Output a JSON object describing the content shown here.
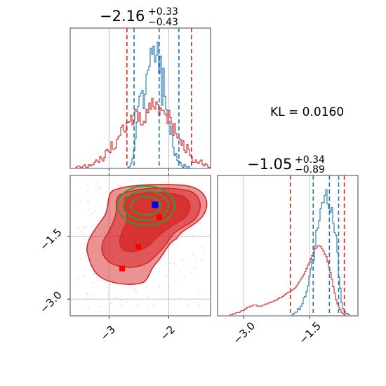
{
  "chart_data": [
    {
      "type": "histogram",
      "panel": "top-left",
      "parameter_index": 0,
      "title": {
        "median": "−2.16",
        "plus": "+0.33",
        "minus": "−0.43"
      },
      "xlim": [
        -3.65,
        -1.3
      ],
      "dashed_lines": {
        "blue": [
          -2.58,
          -2.16,
          -1.83
        ],
        "red": [
          -2.7,
          -1.62
        ]
      },
      "series": [
        {
          "color": "#1f77b4",
          "center": -2.16,
          "sigma": 0.2,
          "weight": 0.25,
          "counts": [
            0,
            0,
            0,
            0,
            0,
            0,
            0,
            0,
            0,
            0,
            0,
            0,
            0,
            0,
            0,
            0,
            0,
            0,
            0,
            0,
            0,
            0,
            0,
            0,
            0,
            0,
            0,
            0,
            0,
            0,
            0,
            0,
            0,
            0,
            0,
            0,
            0,
            0,
            0,
            0,
            0,
            1,
            2,
            5,
            10,
            18,
            30,
            46,
            62,
            72,
            75,
            78,
            60,
            74,
            94,
            98,
            102,
            120,
            114,
            122,
            106,
            113,
            126,
            95,
            112,
            63,
            100,
            72,
            59,
            54,
            47,
            34,
            42,
            21,
            13,
            15,
            8,
            7,
            6,
            3,
            1,
            4,
            2,
            0,
            2,
            0,
            0,
            0,
            0,
            0,
            0,
            0,
            0,
            0,
            0,
            0,
            0,
            0,
            0,
            0
          ]
        },
        {
          "color": "#d62728",
          "center": -2.16,
          "sigma": 0.28,
          "weight": 0.75,
          "counts": [
            0,
            0,
            0,
            0,
            1,
            2,
            2,
            1,
            1,
            2,
            3,
            1,
            1,
            3,
            2,
            3,
            3,
            5,
            7,
            6,
            5,
            10,
            8,
            6,
            9,
            15,
            16,
            14,
            13,
            22,
            16,
            16,
            17,
            24,
            26,
            27,
            34,
            36,
            31,
            30,
            38,
            38,
            39,
            44,
            36,
            40,
            49,
            47,
            39,
            46,
            36,
            36,
            39,
            38,
            49,
            46,
            54,
            49,
            58,
            51,
            49,
            55,
            53,
            44,
            50,
            48,
            48,
            45,
            44,
            37,
            48,
            42,
            37,
            27,
            37,
            29,
            25,
            25,
            24,
            19,
            23,
            15,
            13,
            20,
            16,
            11,
            10,
            5,
            5,
            7,
            5,
            4,
            6,
            7,
            3,
            2,
            4,
            3,
            1,
            1
          ]
        }
      ]
    },
    {
      "type": "histogram",
      "panel": "bottom-right",
      "parameter_index": 1,
      "title": {
        "median": "−1.05",
        "plus": "+0.34",
        "minus": "−0.89"
      },
      "xlim": [
        -3.6,
        -0.4
      ],
      "xticks": [
        -3.0,
        -1.5
      ],
      "xtick_labels": [
        "−3.0",
        "−1.5"
      ],
      "dashed_lines": {
        "blue": [
          -1.42,
          -1.05,
          -0.84
        ],
        "red": [
          -1.94,
          -0.71
        ]
      },
      "series": [
        {
          "color": "#1f77b4",
          "center": -1.05,
          "sigma": 0.2,
          "weight": 0.25,
          "counts": [
            0,
            0,
            0,
            0,
            0,
            0,
            0,
            0,
            0,
            0,
            0,
            0,
            0,
            0,
            0,
            0,
            0,
            0,
            0,
            0,
            0,
            0,
            0,
            0,
            0,
            0,
            0,
            0,
            0,
            0,
            0,
            0,
            0,
            0,
            0,
            0,
            0,
            0,
            0,
            0,
            0,
            0,
            0,
            0,
            0,
            0,
            0,
            0,
            0,
            0,
            0,
            0,
            0,
            1,
            2,
            3,
            3,
            6,
            5,
            8,
            10,
            15,
            16,
            20,
            25,
            33,
            39,
            47,
            46,
            58,
            71,
            73,
            79,
            89,
            94,
            94,
            100,
            105,
            93,
            89,
            86,
            90,
            77,
            69,
            67,
            53,
            32,
            23,
            11,
            6,
            4,
            2,
            2,
            1,
            0,
            0,
            0,
            0,
            0,
            0
          ]
        },
        {
          "color": "#d62728",
          "center": -1.05,
          "sigma": 0.5,
          "weight": 0.75,
          "counts": [
            0,
            0,
            0,
            0,
            0,
            0,
            0,
            0,
            0,
            1,
            1,
            2,
            2,
            3,
            3,
            3,
            4,
            5,
            5,
            6,
            7,
            8,
            8,
            9,
            9,
            10,
            10,
            10,
            9,
            9,
            9,
            9,
            10,
            10,
            11,
            11,
            12,
            12,
            13,
            13,
            14,
            14,
            15,
            16,
            17,
            17,
            18,
            19,
            20,
            21,
            22,
            22,
            23,
            24,
            25,
            26,
            28,
            30,
            32,
            34,
            36,
            38,
            41,
            44,
            47,
            49,
            53,
            56,
            59,
            62,
            63,
            65,
            65,
            64,
            62,
            60,
            57,
            55,
            50,
            45,
            40,
            34,
            27,
            21,
            15,
            11,
            8,
            6,
            3,
            2,
            1,
            0,
            0,
            0,
            0,
            0,
            0,
            0,
            0,
            0
          ]
        }
      ]
    },
    {
      "type": "2d-density",
      "panel": "bottom-left",
      "x_parameter_index": 0,
      "y_parameter_index": 1,
      "xlim": [
        -3.65,
        -1.3
      ],
      "ylim": [
        -3.4,
        -0.05
      ],
      "xticks": [
        -3.0,
        -2.0
      ],
      "xtick_labels": [
        "−3",
        "−2"
      ],
      "yticks": [
        -3.0,
        -1.5
      ],
      "ytick_labels": [
        "−3.0",
        "−1.5"
      ],
      "contour_sets": [
        {
          "name": "red filled",
          "color": "#d62728",
          "levels": [
            0.5,
            0.75,
            0.9
          ]
        },
        {
          "name": "green",
          "color": "#2ca02c",
          "levels": [
            0.3,
            0.6,
            0.9
          ]
        }
      ],
      "markers": [
        {
          "color": "#0000ff",
          "shape": "square",
          "x": -2.23,
          "y": -0.75
        },
        {
          "color": "#ff0000",
          "shape": "square",
          "x": -2.16,
          "y": -1.05
        },
        {
          "color": "#ff0000",
          "shape": "square",
          "x": -2.51,
          "y": -1.75
        },
        {
          "color": "#ff0000",
          "shape": "square",
          "x": -2.78,
          "y": -2.27
        }
      ]
    }
  ],
  "annotation": {
    "kl_text": "KL = 0.0160"
  }
}
